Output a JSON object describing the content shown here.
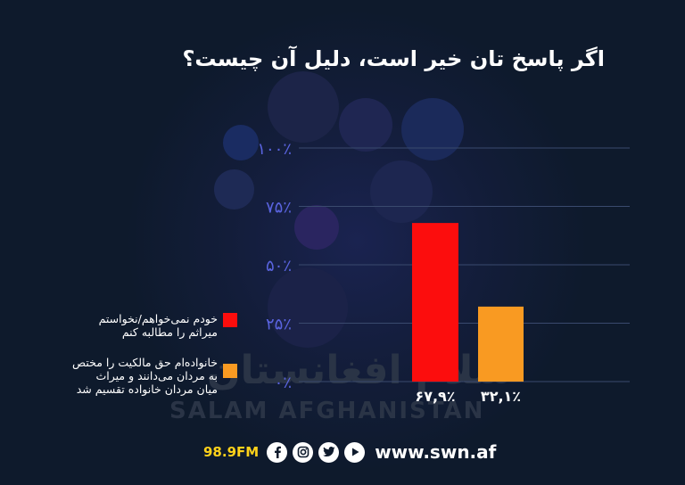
{
  "chart_data": {
    "type": "bar",
    "title": "اگر پاسخ تان خیر است، دلیل آن چیست؟",
    "ylim": [
      0,
      100
    ],
    "yticks": [
      "۰٪",
      "۲۵٪",
      "۵۰٪",
      "۷۵٪",
      "۱۰۰٪"
    ],
    "ytick_values": [
      0,
      25,
      50,
      75,
      100
    ],
    "grid": true,
    "legend_position": "left",
    "series": [
      {
        "name": "خودم نمی‌خواهم/نخواستم میراثم را مطالبه کنم",
        "value": 67.9,
        "label": "۶۷,۹٪",
        "color": "#fc0d0d"
      },
      {
        "name": "خانواده‌ام حق مالکیت را مختص به مردان می‌دانند و میراث میان مردان خانواده تقسیم شد",
        "value": 32.1,
        "label": "۳۲,۱٪",
        "color": "#f99a22"
      }
    ]
  },
  "legend": {
    "item1_line1": "خودم نمی‌خواهم/نخواستم",
    "item1_line2": "میراثم را مطالبه کنم",
    "item2_line1": "خانواده‌ام حق مالکیت را مختص",
    "item2_line2": "به مردان می‌دانند و میراث",
    "item2_line3": "میان مردان خانواده تقسیم شد"
  },
  "watermark": {
    "fa": "سلام افغانستان",
    "en": "SALAM AFGHANISTAN"
  },
  "footer": {
    "frequency": "98.9FM",
    "website": "www.swn.af",
    "icons": [
      "facebook-icon",
      "instagram-icon",
      "twitter-icon",
      "youtube-icon"
    ]
  },
  "colors": {
    "background": "#0e1a2c",
    "grid": "#3a4a6e",
    "axis_label": "#5a64e0"
  }
}
